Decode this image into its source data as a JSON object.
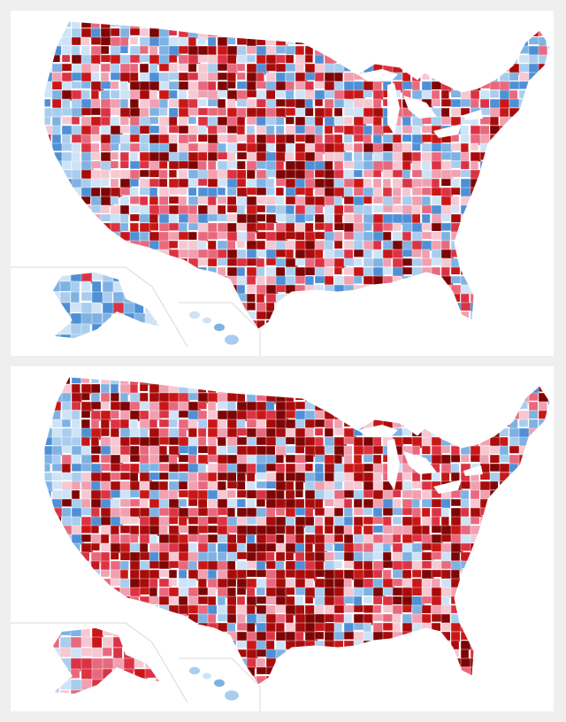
{
  "maps": [
    {
      "id": "top",
      "palette": [
        "#cfe3f6",
        "#a9cdee",
        "#7fb2e3",
        "#4f8fd6",
        "#f6c8d2",
        "#f0a0b0",
        "#e8697e",
        "#dc3344",
        "#c91717",
        "#a80b0b",
        "#7e0505"
      ],
      "red_share": 0.7,
      "dark_red_share": 0.18
    },
    {
      "id": "bottom",
      "palette": [
        "#cfe3f6",
        "#a9cdee",
        "#7fb2e3",
        "#4f8fd6",
        "#f6c8d2",
        "#f0a0b0",
        "#e8697e",
        "#dc3344",
        "#c91717",
        "#a80b0b",
        "#7e0505"
      ],
      "red_share": 0.82,
      "dark_red_share": 0.34
    }
  ],
  "colors": {
    "background": "#efefef",
    "panel": "#ffffff",
    "county_border": "#ffffff",
    "inset_border": "#d9d9d9"
  }
}
